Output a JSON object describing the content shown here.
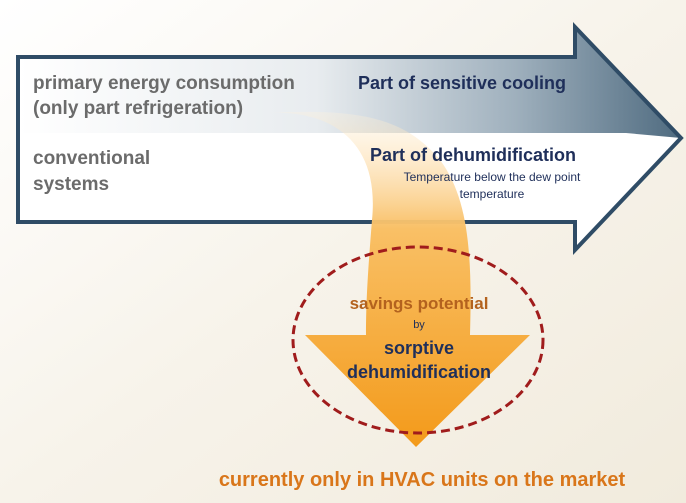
{
  "left_labels": {
    "primary": [
      "primary energy consumption",
      "(only part refrigeration)"
    ],
    "conventional": [
      "conventional",
      "systems"
    ]
  },
  "arrow_labels": {
    "sensitive": "Part of sensitive cooling",
    "dehumidification": "Part of dehumidification",
    "note": [
      "Temperature below the dew point",
      "temperature"
    ]
  },
  "savings": {
    "lines": [
      "savings potential",
      "by",
      "sorptive",
      "dehumidification"
    ]
  },
  "footer": "currently only in HVAC units on the market"
}
